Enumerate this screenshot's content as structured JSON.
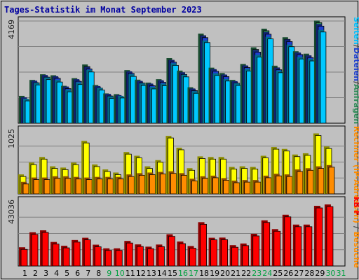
{
  "chart_data": {
    "type": "bar",
    "title": "Tages-Statistik im Monat September 2023",
    "categories": [
      "1",
      "2",
      "3",
      "4",
      "5",
      "6",
      "7",
      "8",
      "9",
      "10",
      "11",
      "12",
      "13",
      "14",
      "15",
      "16",
      "17",
      "18",
      "19",
      "20",
      "21",
      "22",
      "23",
      "24",
      "25",
      "26",
      "27",
      "28",
      "29",
      "30",
      "31"
    ],
    "weekend_days": [
      "9",
      "10",
      "16",
      "17",
      "23",
      "24",
      "30",
      "31"
    ],
    "colors": {
      "anfragen": "#2e8b57",
      "dateien": "#1e3fd0",
      "seiten": "#00c8ff",
      "rechner": "#ffff00",
      "besuche": "#ff8c00",
      "kb": "#ff0000",
      "weekday_tick": "#000000",
      "weekend_tick": "#00a040",
      "title": "#0000a0"
    },
    "panels": [
      {
        "id": "requests",
        "ymax_label": "4169",
        "ylim": [
          0,
          4169
        ],
        "side_label": [
          {
            "text": "Seiten",
            "color": "#00c0ff"
          },
          {
            "text": "/",
            "color": "#404040"
          },
          {
            "text": "Dateien",
            "color": "#1e3fd0"
          },
          {
            "text": "/",
            "color": "#404040"
          },
          {
            "text": "Anfragen",
            "color": "#2e8b57"
          }
        ],
        "series": [
          {
            "name": "Anfragen",
            "color": "#2e8b57",
            "values": [
              1030,
              1680,
              1910,
              1870,
              1440,
              1750,
              2310,
              1470,
              1130,
              1100,
              2080,
              1690,
              1570,
              1710,
              2570,
              2060,
              1380,
              3570,
              2180,
              1960,
              1680,
              2330,
              3010,
              3770,
              2260,
              3420,
              2850,
              2750,
              4100,
              0,
              0
            ]
          },
          {
            "name": "Dateien",
            "color": "#1e3fd0",
            "values": [
              970,
              1650,
              1880,
              1830,
              1410,
              1710,
              2210,
              1430,
              1110,
              1060,
              2030,
              1640,
              1530,
              1670,
              2490,
              1990,
              1330,
              3490,
              2120,
              1900,
              1630,
              2270,
              2900,
              3630,
              2180,
              3330,
              2800,
              2680,
              3960,
              0,
              0
            ]
          },
          {
            "name": "Seiten",
            "color": "#00c8ff",
            "values": [
              910,
              1560,
              1780,
              1680,
              1280,
              1580,
              2090,
              1350,
              1010,
              1030,
              1910,
              1540,
              1400,
              1530,
              2360,
              1890,
              1220,
              3290,
              1950,
              1720,
              1540,
              2130,
              2700,
              3440,
              2060,
              3120,
              2620,
              2540,
              3720,
              0,
              0
            ]
          }
        ]
      },
      {
        "id": "visitors",
        "ymax_label": "1025",
        "ylim": [
          0,
          1025
        ],
        "side_label": [
          {
            "text": "Rechner (IP-Adressen)",
            "color": "#ff8c00"
          },
          {
            "text": " / ",
            "color": "#404040"
          },
          {
            "text": "Besuche",
            "color": "#ff8c00"
          }
        ],
        "series": [
          {
            "name": "Besuche",
            "color": "#ffff00",
            "values": [
              280,
              470,
              560,
              410,
              390,
              470,
              820,
              440,
              360,
              310,
              640,
              580,
              410,
              510,
              900,
              710,
              380,
              570,
              560,
              560,
              400,
              410,
              400,
              580,
              720,
              690,
              600,
              620,
              940,
              730,
              0
            ]
          },
          {
            "name": "Rechner (IP-Adressen)",
            "color": "#ff8c00",
            "values": [
              160,
              230,
              230,
              250,
              250,
              240,
              230,
              240,
              240,
              240,
              280,
              300,
              310,
              320,
              330,
              300,
              210,
              250,
              260,
              220,
              180,
              190,
              190,
              260,
              290,
              280,
              360,
              380,
              410,
              430,
              0
            ]
          }
        ]
      },
      {
        "id": "kbytes",
        "ymax_label": "43036",
        "ylim": [
          0,
          43036
        ],
        "side_label": [
          {
            "text": "kB F",
            "color": "#ff0000"
          }
        ],
        "series": [
          {
            "name": "kB F",
            "color": "#ff0000",
            "values": [
              11000,
              20900,
              22200,
              14500,
              12000,
              15800,
              17300,
              12700,
              10300,
              10300,
              15200,
              12900,
              11400,
              12800,
              19600,
              14800,
              11800,
              27600,
              17300,
              17400,
              12400,
              13500,
              19900,
              28800,
              23000,
              32500,
              26000,
              26000,
              38400,
              39300,
              0
            ]
          }
        ]
      }
    ]
  }
}
